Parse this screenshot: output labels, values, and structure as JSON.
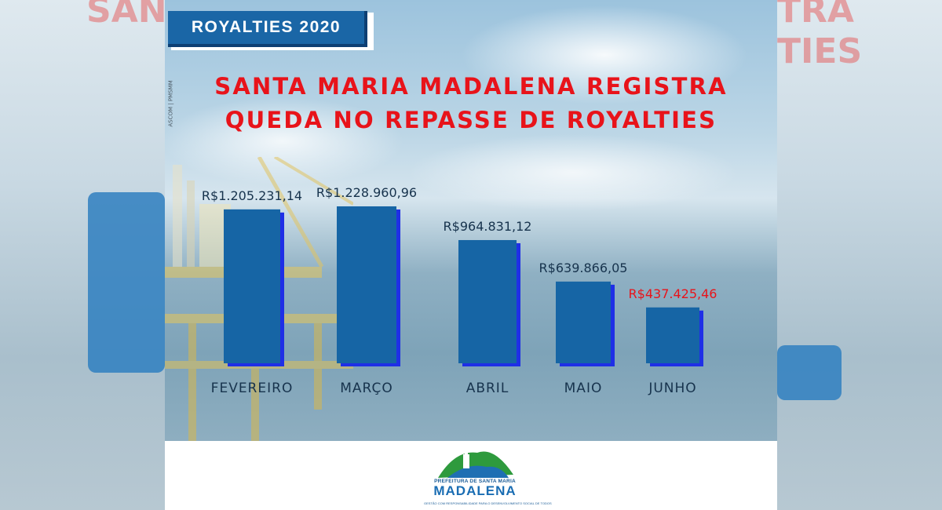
{
  "badge": {
    "label": "ROYALTIES 2020"
  },
  "credit": "ASCOM | PMSMM",
  "headline": {
    "line1": "SANTA MARIA MADALENA REGISTRA",
    "line2": "QUEDA NO REPASSE DE ROYALTIES"
  },
  "colors": {
    "bar": "#1665a5",
    "bar_edge": "#1f2fe6",
    "label_normal": "#17334d",
    "label_highlight": "#e8131a",
    "headline": "#e8131a"
  },
  "chart_data": {
    "type": "bar",
    "categories": [
      "FEVEREIRO",
      "MARÇO",
      "ABRIL",
      "MAIO",
      "JUNHO"
    ],
    "values": [
      1205231.14,
      1228960.96,
      964831.12,
      639866.05,
      437425.46
    ],
    "value_labels": [
      "R$1.205.231,14",
      "R$1.228.960,96",
      "R$964.831,12",
      "R$639.866,05",
      "R$437.425,46"
    ],
    "highlighted_category": "JUNHO",
    "title": "",
    "xlabel": "",
    "ylabel": "",
    "grid": false
  },
  "logo": {
    "org_line": "PREFEITURA DE SANTA MARIA",
    "name": "MADALENA",
    "tagline": "GESTÃO COM RESPONSABILIDADE PARA O DESENVOLVIMENTO SOCIAL DE TODOS"
  },
  "background_blur": {
    "left_text": "SAN",
    "right_text": "TRA",
    "right_text2": "TIES"
  }
}
